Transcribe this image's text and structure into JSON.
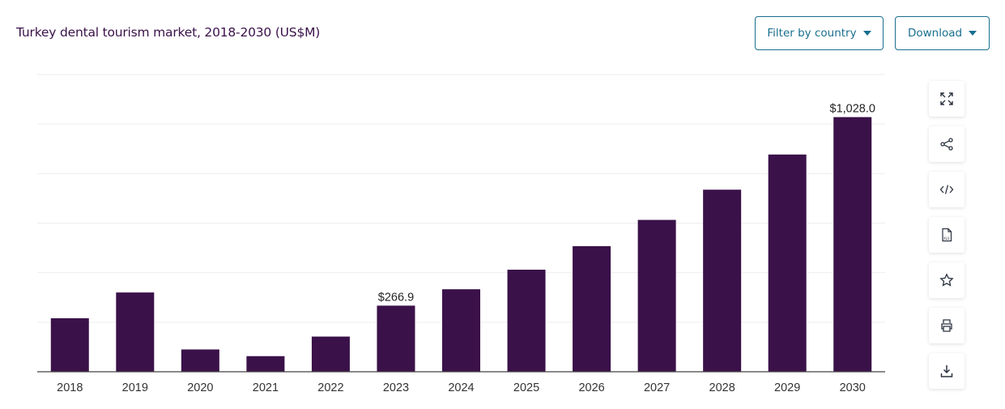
{
  "header": {
    "title": "Turkey dental tourism market, 2018-2030 (US$M)",
    "filter_label": "Filter by country",
    "download_label": "Download"
  },
  "toolbar": {
    "icons": [
      "expand-icon",
      "share-icon",
      "embed-code-icon",
      "xls-file-icon",
      "star-icon",
      "print-icon",
      "download-icon"
    ]
  },
  "colors": {
    "bar": "#3a1149",
    "accent": "#1a6f8f",
    "title": "#3a1149"
  },
  "chart_data": {
    "type": "bar",
    "title": "Turkey dental tourism market, 2018-2030 (US$M)",
    "categories": [
      "2018",
      "2019",
      "2020",
      "2021",
      "2022",
      "2023",
      "2024",
      "2025",
      "2026",
      "2027",
      "2028",
      "2029",
      "2030"
    ],
    "values": [
      216,
      320,
      90,
      63,
      142,
      266.9,
      333,
      412,
      507,
      613,
      735,
      877,
      1028.0
    ],
    "data_labels": [
      {
        "index": 5,
        "text": "$266.9"
      },
      {
        "index": 12,
        "text": "$1,028.0"
      }
    ],
    "ylim": [
      0,
      1200
    ],
    "gridlines": [
      200,
      400,
      600,
      800,
      1000,
      1200
    ],
    "grid": true,
    "xlabel": "",
    "ylabel": ""
  }
}
